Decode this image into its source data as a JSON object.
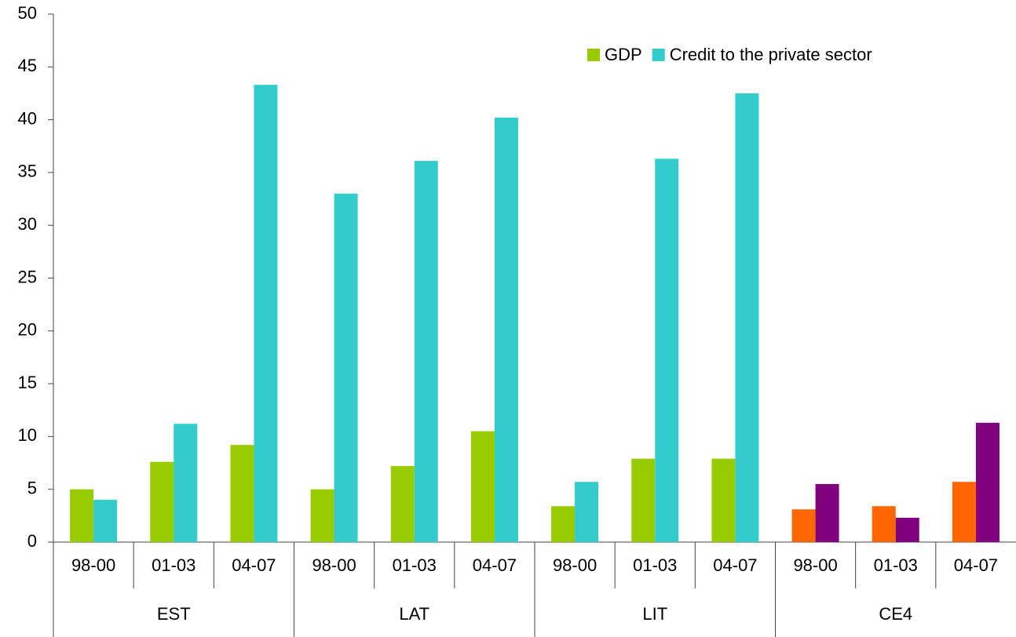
{
  "chart_data": {
    "type": "bar",
    "categories": [
      "98-00",
      "01-03",
      "04-07",
      "98-00",
      "01-03",
      "04-07",
      "98-00",
      "01-03",
      "04-07",
      "98-00",
      "01-03",
      "04-07"
    ],
    "groups": [
      "EST",
      "LAT",
      "LIT",
      "CE4"
    ],
    "series": [
      {
        "name": "GDP",
        "color": "#99cc00",
        "colors": [
          "#99cc00",
          "#99cc00",
          "#99cc00",
          "#99cc00",
          "#99cc00",
          "#99cc00",
          "#99cc00",
          "#99cc00",
          "#99cc00",
          "#ff6600",
          "#ff6600",
          "#ff6600"
        ],
        "values": [
          5.0,
          7.6,
          9.2,
          5.0,
          7.2,
          10.5,
          3.4,
          7.9,
          7.9,
          3.1,
          3.4,
          5.7
        ]
      },
      {
        "name": "Credit to the private sector",
        "color": "#33cccc",
        "colors": [
          "#33cccc",
          "#33cccc",
          "#33cccc",
          "#33cccc",
          "#33cccc",
          "#33cccc",
          "#33cccc",
          "#33cccc",
          "#33cccc",
          "#800080",
          "#800080",
          "#800080"
        ],
        "values": [
          4.0,
          11.2,
          43.3,
          33.0,
          36.1,
          40.2,
          5.7,
          36.3,
          42.5,
          5.5,
          2.3,
          11.3
        ]
      }
    ],
    "ylim": [
      0,
      50
    ],
    "yticks": [
      0,
      5,
      10,
      15,
      20,
      25,
      30,
      35,
      40,
      45,
      50
    ],
    "legend": "top-right"
  }
}
